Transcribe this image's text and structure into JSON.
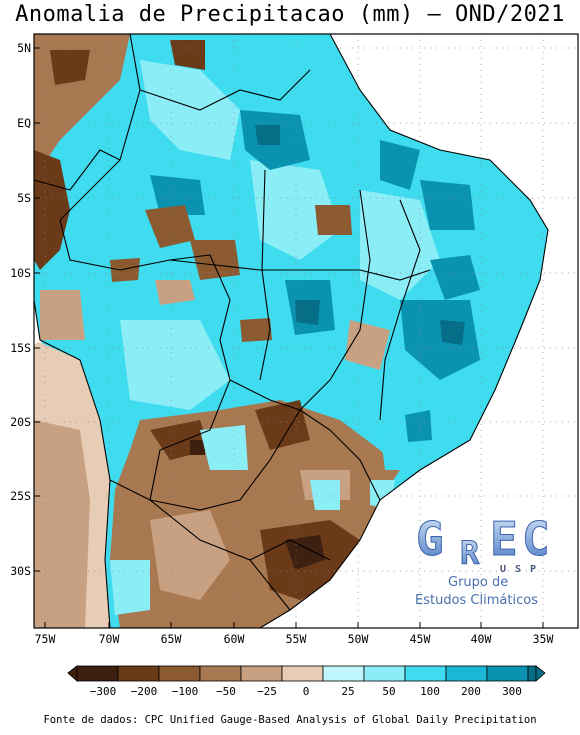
{
  "title": "Anomalia de Precipitacao (mm) – OND/2021",
  "footer": "Fonte de dados: CPC Unified Gauge-Based Analysis of Global Daily Precipitation",
  "lat_labels": [
    "5N",
    "EQ",
    "5S",
    "10S",
    "15S",
    "20S",
    "25S",
    "30S"
  ],
  "lon_labels": [
    "75W",
    "70W",
    "65W",
    "60W",
    "55W",
    "50W",
    "45W",
    "40W",
    "35W"
  ],
  "colorbar": {
    "labels": [
      "−300",
      "−200",
      "−100",
      "−50",
      "−25",
      "0",
      "25",
      "50",
      "100",
      "200",
      "300"
    ],
    "colors": [
      "#3d2010",
      "#6b3a18",
      "#8b5a30",
      "#a87850",
      "#c8a082",
      "#e8cdb6",
      "#bff6fb",
      "#8beef7",
      "#3fdcf0",
      "#19b8d6",
      "#0a93b0",
      "#066f87"
    ]
  },
  "logo": {
    "letters": [
      "G",
      "R",
      "E",
      "C"
    ],
    "sub": "USP",
    "line1": "Grupo de",
    "line2": "Estudos Climáticos"
  }
}
